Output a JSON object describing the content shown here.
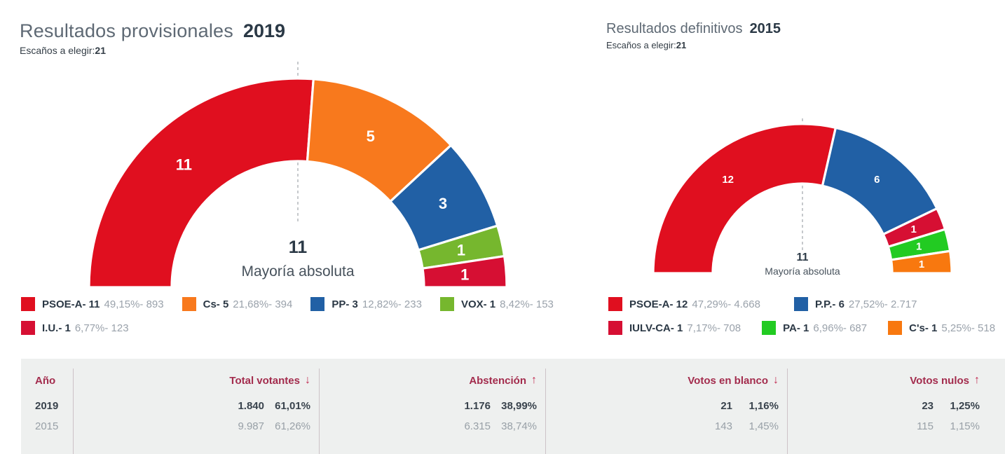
{
  "left_panel": {
    "title": "Resultados provisionales",
    "year": "2019",
    "seats_label": "Escaños a elegir:",
    "seats_value": "21",
    "majority_value": "11",
    "majority_label": "Mayoría absoluta",
    "legend_rows": [
      [
        {
          "label": "PSOE-A- 11",
          "detail": "49,15%- 893",
          "color": "#e00f1f"
        },
        {
          "label": "Cs- 5",
          "detail": "21,68%- 394",
          "color": "#f8791d"
        },
        {
          "label": "PP- 3",
          "detail": "12,82%- 233",
          "color": "#2160a5"
        },
        {
          "label": "VOX- 1",
          "detail": "8,42%- 153",
          "color": "#76b72e"
        }
      ],
      [
        {
          "label": "I.U.- 1",
          "detail": "6,77%- 123",
          "color": "#d60f33"
        }
      ]
    ]
  },
  "right_panel": {
    "title": "Resultados definitivos",
    "year": "2015",
    "seats_label": "Escaños a elegir:",
    "seats_value": "21",
    "majority_value": "11",
    "majority_label": "Mayoría absoluta",
    "legend_rows": [
      [
        {
          "label": "PSOE-A- 12",
          "detail": "47,29%- 4.668",
          "color": "#e00f1f"
        },
        {
          "label": "P.P.- 6",
          "detail": "27,52%- 2.717",
          "color": "#2160a5"
        }
      ],
      [
        {
          "label": "IULV-CA- 1",
          "detail": "7,17%- 708",
          "color": "#d60f33"
        },
        {
          "label": "PA- 1",
          "detail": "6,96%- 687",
          "color": "#22cb22"
        },
        {
          "label": "C's- 1",
          "detail": "5,25%- 518",
          "color": "#f8780f"
        }
      ]
    ]
  },
  "table": {
    "columns": [
      {
        "key": "ano",
        "header": "Año",
        "arrow": null
      },
      {
        "key": "total-votantes",
        "header": "Total votantes",
        "arrow": "down"
      },
      {
        "key": "abstencion",
        "header": "Abstención",
        "arrow": "up"
      },
      {
        "key": "votos-en-blanco",
        "header": "Votos en blanco",
        "arrow": "down"
      },
      {
        "key": "votos-nulos",
        "header": "Votos nulos",
        "arrow": "up"
      }
    ],
    "rows": [
      {
        "year": "2019",
        "emphasis": true,
        "cells": [
          [
            "1.840",
            "61,01%"
          ],
          [
            "1.176",
            "38,99%"
          ],
          [
            "21",
            "1,16%"
          ],
          [
            "23",
            "1,25%"
          ]
        ]
      },
      {
        "year": "2015",
        "emphasis": false,
        "cells": [
          [
            "9.987",
            "61,26%"
          ],
          [
            "6.315",
            "38,74%"
          ],
          [
            "143",
            "1,45%"
          ],
          [
            "115",
            "1,15%"
          ]
        ]
      }
    ]
  },
  "chart_data": [
    {
      "type": "pie",
      "variant": "half-donut-seat-arc",
      "title": "Resultados provisionales 2019",
      "seats_total": 21,
      "majority_threshold": 11,
      "legend_position": "bottom",
      "series": [
        {
          "party": "PSOE-A",
          "seats": 11,
          "percent": 49.15,
          "votes": 893,
          "color": "#e00f1f"
        },
        {
          "party": "Cs",
          "seats": 5,
          "percent": 21.68,
          "votes": 394,
          "color": "#f8791d"
        },
        {
          "party": "PP",
          "seats": 3,
          "percent": 12.82,
          "votes": 233,
          "color": "#2160a5"
        },
        {
          "party": "VOX",
          "seats": 1,
          "percent": 8.42,
          "votes": 153,
          "color": "#76b72e"
        },
        {
          "party": "I.U.",
          "seats": 1,
          "percent": 6.77,
          "votes": 123,
          "color": "#d60f33"
        }
      ]
    },
    {
      "type": "pie",
      "variant": "half-donut-seat-arc",
      "title": "Resultados definitivos 2015",
      "seats_total": 21,
      "majority_threshold": 11,
      "legend_position": "bottom",
      "series": [
        {
          "party": "PSOE-A",
          "seats": 12,
          "percent": 47.29,
          "votes": 4668,
          "color": "#e00f1f"
        },
        {
          "party": "P.P.",
          "seats": 6,
          "percent": 27.52,
          "votes": 2717,
          "color": "#2160a5"
        },
        {
          "party": "IULV-CA",
          "seats": 1,
          "percent": 7.17,
          "votes": 708,
          "color": "#d60f33"
        },
        {
          "party": "PA",
          "seats": 1,
          "percent": 6.96,
          "votes": 687,
          "color": "#22cb22"
        },
        {
          "party": "C's",
          "seats": 1,
          "percent": 5.25,
          "votes": 518,
          "color": "#f8780f"
        }
      ]
    },
    {
      "type": "table",
      "columns": [
        "Año",
        "Total votantes",
        "Abstención",
        "Votos en blanco",
        "Votos nulos"
      ],
      "trends": [
        null,
        "down",
        "up",
        "down",
        "up"
      ],
      "rows": [
        {
          "ano": "2019",
          "total_votantes": 1840,
          "total_votantes_pct": 61.01,
          "abstencion": 1176,
          "abstencion_pct": 38.99,
          "votos_en_blanco": 21,
          "votos_en_blanco_pct": 1.16,
          "votos_nulos": 23,
          "votos_nulos_pct": 1.25
        },
        {
          "ano": "2015",
          "total_votantes": 9987,
          "total_votantes_pct": 61.26,
          "abstencion": 6315,
          "abstencion_pct": 38.74,
          "votos_en_blanco": 143,
          "votos_en_blanco_pct": 1.45,
          "votos_nulos": 115,
          "votos_nulos_pct": 1.15
        }
      ]
    }
  ]
}
